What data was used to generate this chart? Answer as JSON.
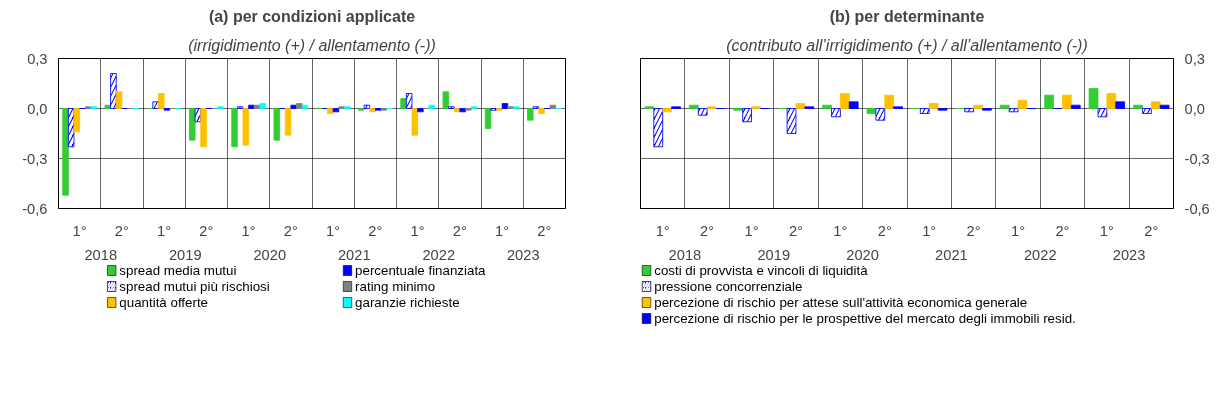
{
  "chart_data": [
    {
      "type": "bar",
      "title": "(a) per condizioni applicate",
      "subtitle": "(irrigidimento (+) / allentamento (-))",
      "categories": [
        "1°",
        "2°",
        "1°",
        "2°",
        "1°",
        "2°",
        "1°",
        "2°",
        "1°",
        "2°",
        "1°",
        "2°"
      ],
      "annotations": [
        "2018",
        "2019",
        "2020",
        "2021",
        "2022",
        "2023"
      ],
      "ylim": [
        -0.6,
        0.3
      ],
      "yticks": [
        {
          "value": -0.6,
          "label": "-0,6"
        },
        {
          "value": -0.3,
          "label": "-0,3"
        },
        {
          "value": 0,
          "label": "0,0"
        },
        {
          "value": 0.3,
          "label": "0,3"
        }
      ],
      "grid": true,
      "legend": "bottom",
      "series": [
        {
          "name": "spread media mutui",
          "color": "#33cc33",
          "values": [
            -0.52,
            0.02,
            0,
            -0.19,
            -0.23,
            -0.19,
            0,
            -0.01,
            0.06,
            0.1,
            -0.12,
            -0.07
          ]
        },
        {
          "name": "spread mutui più rischiosi",
          "color": "#0000ff",
          "values": [
            -0.23,
            0.21,
            0.04,
            -0.08,
            0.01,
            0,
            0,
            0.02,
            0.09,
            0.01,
            -0.01,
            0.01
          ]
        },
        {
          "name": "quantità offerte",
          "color": "#ffc000",
          "values": [
            -0.14,
            0.1,
            0.09,
            -0.23,
            -0.22,
            -0.16,
            -0.03,
            -0.02,
            -0.16,
            -0.02,
            -0.01,
            -0.03
          ]
        },
        {
          "name": "percentuale finanziata",
          "color": "#0000ff",
          "values": [
            0,
            0,
            -0.01,
            0,
            0.02,
            0.02,
            -0.02,
            -0.01,
            -0.02,
            -0.02,
            0.03,
            0
          ]
        },
        {
          "name": "rating minimo",
          "color": "#808080",
          "values": [
            0.01,
            0,
            0,
            0,
            0.02,
            0.03,
            0.01,
            -0.01,
            0,
            -0.01,
            0.01,
            0.02
          ]
        },
        {
          "name": "garanzie richieste",
          "color": "#00ffff",
          "values": [
            0.01,
            0,
            0,
            0.01,
            0.03,
            0.02,
            0.01,
            0,
            0.02,
            0.01,
            0.01,
            0
          ]
        }
      ]
    },
    {
      "type": "bar",
      "title": "(b) per determinante",
      "subtitle": "(contributo all’irrigidimento (+) / all’allentamento (-))",
      "categories": [
        "1°",
        "2°",
        "1°",
        "2°",
        "1°",
        "2°",
        "1°",
        "2°",
        "1°",
        "2°",
        "1°",
        "2°"
      ],
      "annotations": [
        "2018",
        "2019",
        "2020",
        "2021",
        "2022",
        "2023"
      ],
      "ylim": [
        -0.6,
        0.3
      ],
      "yticks": [
        {
          "value": -0.6,
          "label": "-0,6"
        },
        {
          "value": -0.3,
          "label": "-0,3"
        },
        {
          "value": 0,
          "label": "0,0"
        },
        {
          "value": 0.3,
          "label": "0,3"
        }
      ],
      "grid": true,
      "legend": "bottom",
      "series": [
        {
          "name": "costi di provvista e vincoli di liquidità",
          "color": "#33cc33",
          "values": [
            0.01,
            0.02,
            -0.01,
            0,
            0.02,
            -0.03,
            0,
            0,
            0.02,
            0.08,
            0.12,
            0.02
          ]
        },
        {
          "name": "pressione concorrenziale",
          "color": "#0000ff",
          "values": [
            -0.23,
            -0.04,
            -0.08,
            -0.15,
            -0.05,
            -0.07,
            -0.03,
            -0.02,
            -0.02,
            0,
            -0.05,
            -0.03
          ]
        },
        {
          "name": "percezione di rischio per attese sull'attività economica generale",
          "color": "#ffc000",
          "values": [
            -0.02,
            0.01,
            0.01,
            0.03,
            0.09,
            0.08,
            0.03,
            0.02,
            0.05,
            0.08,
            0.09,
            0.04
          ]
        },
        {
          "name": "percezione di rischio per le prospettive del mercato degli immobili resid.",
          "color": "#0000ff",
          "values": [
            0.01,
            0,
            0,
            0.01,
            0.04,
            0.01,
            -0.01,
            -0.01,
            0,
            0.02,
            0.04,
            0.02
          ]
        }
      ]
    }
  ]
}
